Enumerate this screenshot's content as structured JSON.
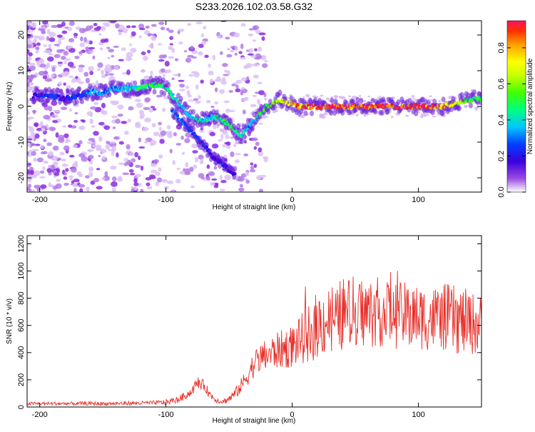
{
  "title": "S233.2026.102.03.58.G32",
  "chart_data": [
    {
      "type": "heatmap",
      "xlabel": "Height of straight line (km)",
      "ylabel": "Frequency (Hz)",
      "xlim": [
        -210,
        150
      ],
      "ylim": [
        -24,
        24
      ],
      "xticks": [
        -200,
        -100,
        0,
        100
      ],
      "yticks": [
        20,
        10,
        0,
        -10,
        -20
      ],
      "colorbar": {
        "label": "Normalized spectral amplitude",
        "range": [
          0,
          0.95
        ],
        "ticks": [
          0.0,
          0.2,
          0.4,
          0.6,
          0.8
        ],
        "colors": [
          "#d9b3f2",
          "#9a4ae0",
          "#3a00e0",
          "#0040ff",
          "#00c8ff",
          "#00ff80",
          "#40ff00",
          "#c8ff00",
          "#ffff00",
          "#ffa000",
          "#ff3000",
          "#ff1060"
        ]
      },
      "ridge": {
        "x": [
          -205,
          -190,
          -180,
          -170,
          -160,
          -150,
          -140,
          -130,
          -120,
          -110,
          -105,
          -100,
          -95,
          -90,
          -85,
          -80,
          -75,
          -70,
          -65,
          -60,
          -55,
          -50,
          -45,
          -40,
          -35,
          -30,
          -25,
          -20,
          -15,
          -10,
          -5,
          0,
          5,
          10,
          20,
          30,
          40,
          50,
          60,
          70,
          80,
          90,
          100,
          110,
          120,
          130,
          140,
          150
        ],
        "y": [
          3,
          3,
          2,
          3,
          4,
          4,
          5,
          5,
          5,
          6,
          6,
          5,
          3,
          1,
          -1,
          -3,
          -4,
          -4,
          -3,
          -3,
          -4,
          -5,
          -7,
          -8,
          -6,
          -4,
          -2,
          0,
          1,
          2,
          1,
          1,
          0,
          0,
          0,
          0,
          0,
          0,
          0,
          0,
          0,
          0,
          0,
          0,
          0,
          1,
          2,
          2
        ],
        "amplitude": [
          0.2,
          0.25,
          0.2,
          0.25,
          0.3,
          0.35,
          0.35,
          0.4,
          0.45,
          0.45,
          0.5,
          0.45,
          0.4,
          0.35,
          0.35,
          0.4,
          0.45,
          0.4,
          0.35,
          0.4,
          0.45,
          0.5,
          0.45,
          0.4,
          0.35,
          0.4,
          0.5,
          0.55,
          0.6,
          0.65,
          0.7,
          0.75,
          0.8,
          0.85,
          0.9,
          0.9,
          0.92,
          0.9,
          0.92,
          0.9,
          0.93,
          0.9,
          0.92,
          0.88,
          0.8,
          0.65,
          0.5,
          0.45
        ]
      },
      "branch": {
        "x": [
          -95,
          -90,
          -85,
          -80,
          -75,
          -70,
          -65,
          -60,
          -55,
          -50,
          -45
        ],
        "y": [
          -1,
          -3,
          -5,
          -7,
          -9,
          -11,
          -13,
          -15,
          -16,
          -18,
          -19
        ],
        "amplitude": [
          0.3,
          0.3,
          0.3,
          0.25,
          0.25,
          0.25,
          0.2,
          0.2,
          0.2,
          0.2,
          0.15
        ]
      }
    },
    {
      "type": "line",
      "xlabel": "Height of straight line (km)",
      "ylabel": "SNR (10 * v/v)",
      "xlim": [
        -210,
        150
      ],
      "ylim": [
        0,
        1260
      ],
      "xticks": [
        -200,
        -100,
        0,
        100
      ],
      "yticks": [
        0,
        200,
        400,
        600,
        800,
        1000,
        1200
      ],
      "color": "#e8302a",
      "envelope": {
        "x": [
          -210,
          -150,
          -110,
          -100,
          -90,
          -80,
          -75,
          -70,
          -65,
          -60,
          -55,
          -50,
          -45,
          -40,
          -35,
          -30,
          -25,
          -20,
          -15,
          -10,
          -5,
          0,
          5,
          10,
          15,
          20,
          30,
          40,
          50,
          60,
          70,
          80,
          90,
          100,
          110,
          120,
          130,
          140,
          150
        ],
        "mean": [
          25,
          25,
          30,
          35,
          55,
          110,
          180,
          160,
          90,
          50,
          40,
          60,
          100,
          160,
          240,
          320,
          360,
          380,
          400,
          420,
          430,
          450,
          480,
          520,
          560,
          600,
          650,
          680,
          700,
          690,
          700,
          680,
          670,
          660,
          650,
          660,
          640,
          620,
          600
        ],
        "spread": [
          12,
          14,
          16,
          20,
          25,
          35,
          45,
          40,
          30,
          20,
          20,
          30,
          40,
          60,
          80,
          100,
          110,
          120,
          130,
          140,
          150,
          160,
          170,
          200,
          230,
          250,
          260,
          270,
          270,
          260,
          260,
          250,
          250,
          240,
          240,
          250,
          260,
          240,
          220
        ]
      }
    }
  ]
}
